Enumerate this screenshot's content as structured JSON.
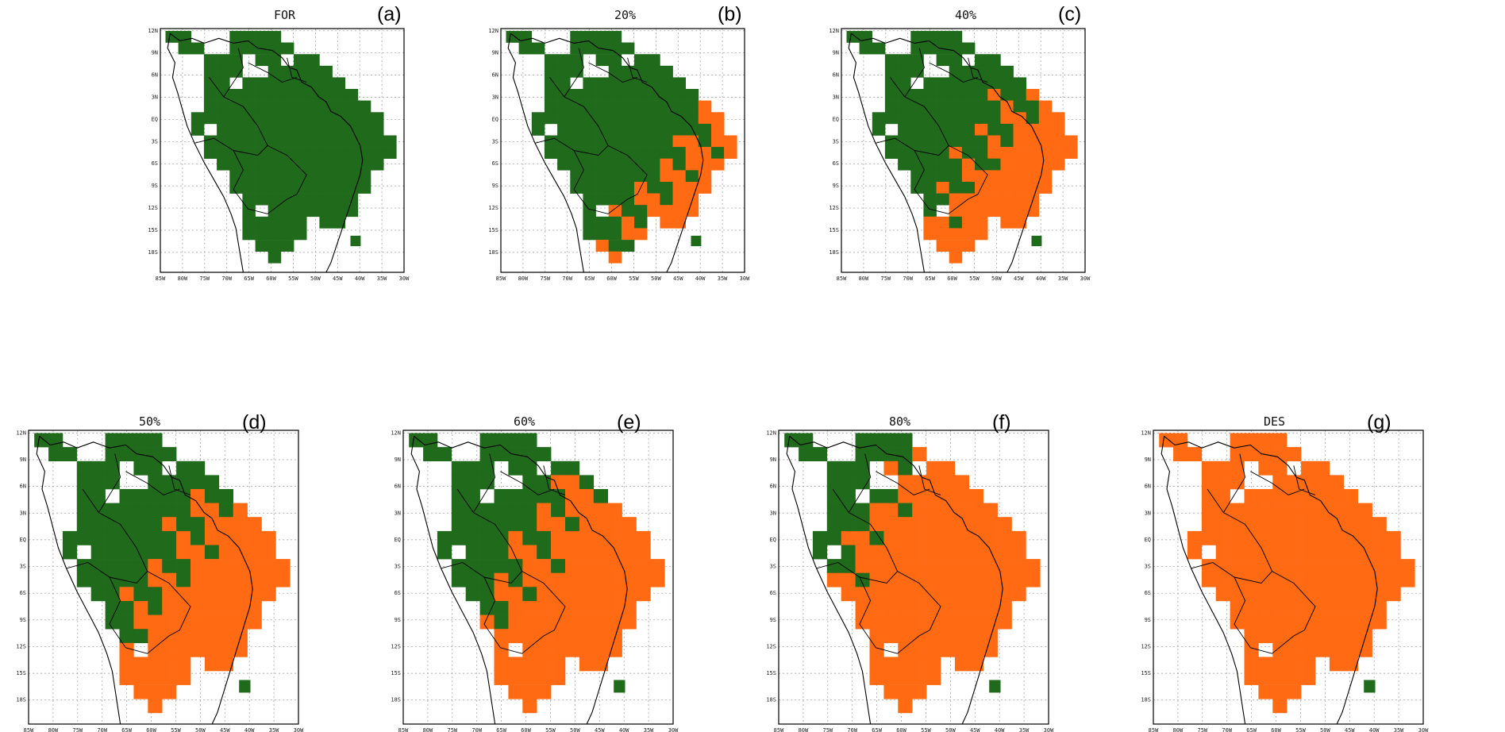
{
  "legend_colors": {
    "forest": "#1f6a1b",
    "deforested": "#ff6a13"
  },
  "panels": [
    {
      "id": "a",
      "title": "FOR",
      "letter": "(a)"
    },
    {
      "id": "b",
      "title": "20%",
      "letter": "(b)"
    },
    {
      "id": "c",
      "title": "40%",
      "letter": "(c)"
    },
    {
      "id": "d",
      "title": "50%",
      "letter": "(d)"
    },
    {
      "id": "e",
      "title": "60%",
      "letter": "(e)"
    },
    {
      "id": "f",
      "title": "80%",
      "letter": "(f)"
    },
    {
      "id": "g",
      "title": "DES",
      "letter": "(g)"
    }
  ],
  "axes": {
    "lon_labels": [
      "85W",
      "80W",
      "75W",
      "70W",
      "65W",
      "60W",
      "55W",
      "50W",
      "45W",
      "40W",
      "35W",
      "30W"
    ],
    "lat_labels": [
      "12N",
      "9N",
      "6N",
      "3N",
      "EQ",
      "3S",
      "6S",
      "9S",
      "12S",
      "15S",
      "18S"
    ],
    "lon_range": [
      -85,
      -30
    ],
    "lat_range": [
      -21,
      12
    ]
  },
  "scenario_forest_fraction": {
    "a": 1.0,
    "b": 0.8,
    "c": 0.6,
    "d": 0.5,
    "e": 0.4,
    "f": 0.2,
    "g": 0.0
  }
}
